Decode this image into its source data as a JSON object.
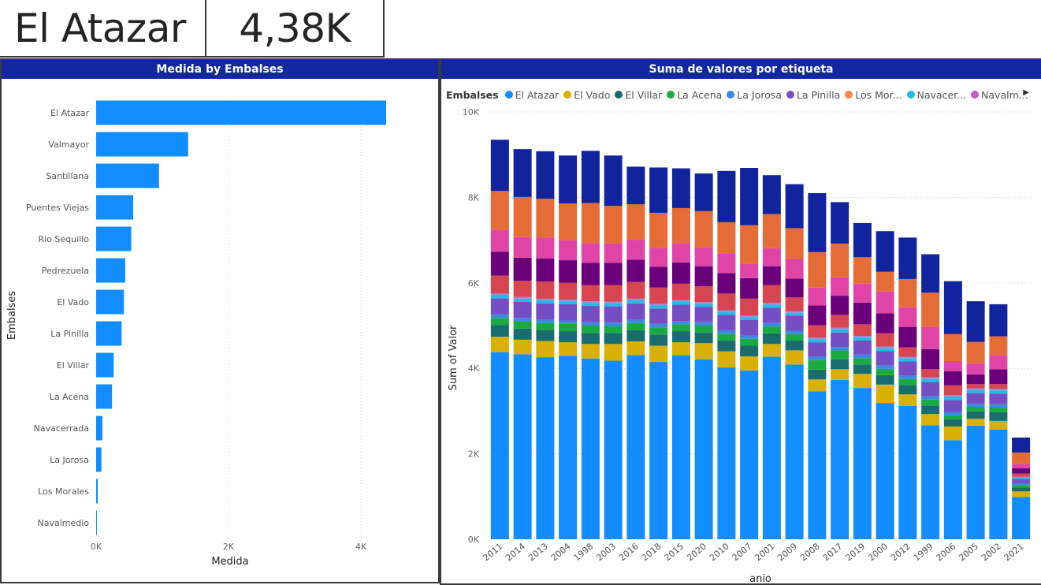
{
  "cards": {
    "name": "El Atazar",
    "value": "4,38K"
  },
  "chart_data": [
    {
      "type": "bar",
      "orientation": "horizontal",
      "title": "Medida by Embalses",
      "xlabel": "Medida",
      "ylabel": "Embalses",
      "xlim": [
        0,
        5000
      ],
      "ticks": [
        "0K",
        "2K",
        "4K"
      ],
      "tick_values": [
        0,
        2000,
        4000
      ],
      "color": "#118dff",
      "categories": [
        "El Atazar",
        "Valmayor",
        "Santillana",
        "Puentes Viejas",
        "Rio Sequillo",
        "Pedrezuela",
        "El Vado",
        "La Pinilla",
        "El Villar",
        "La Acena",
        "Navacerrada",
        "La Jorosa",
        "Los Morales",
        "Navalmedio"
      ],
      "values": [
        4380,
        1390,
        950,
        560,
        530,
        440,
        420,
        385,
        265,
        240,
        95,
        80,
        25,
        12
      ]
    },
    {
      "type": "bar",
      "stacked": true,
      "title": "Suma de valores por etiqueta",
      "xlabel": "anio",
      "ylabel": "Sum of Valor",
      "ylim": [
        0,
        10000
      ],
      "ticks": [
        "0K",
        "2K",
        "4K",
        "6K",
        "8K",
        "10K"
      ],
      "tick_values": [
        0,
        2000,
        4000,
        6000,
        8000,
        10000
      ],
      "legend_title": "Embalses",
      "legend_position": "top-left",
      "legend": [
        {
          "label": "El Atazar",
          "color": "#118dff"
        },
        {
          "label": "El Vado",
          "color": "#d8b006"
        },
        {
          "label": "El Villar",
          "color": "#1a6d6f"
        },
        {
          "label": "La Acena",
          "color": "#1aab40"
        },
        {
          "label": "La Jorosa",
          "color": "#3d88e6"
        },
        {
          "label": "La Pinilla",
          "color": "#744ec2"
        },
        {
          "label": "Los Mor...",
          "color": "#f7894a"
        },
        {
          "label": "Navacer...",
          "color": "#1ebde3"
        },
        {
          "label": "Navalm...",
          "color": "#c957c7"
        }
      ],
      "series_colors": [
        "#118dff",
        "#d8b006",
        "#1a6d6f",
        "#1aab40",
        "#3d88e6",
        "#744ec2",
        "#1ebde3",
        "#9c88dc",
        "#d64550",
        "#6b007b",
        "#e044a7",
        "#e66c37",
        "#12239e"
      ],
      "categories": [
        "2011",
        "2014",
        "2013",
        "2004",
        "1998",
        "2003",
        "2016",
        "2018",
        "2015",
        "2020",
        "2010",
        "2007",
        "2001",
        "2009",
        "2008",
        "2017",
        "2019",
        "2000",
        "2012",
        "1999",
        "2006",
        "2005",
        "2002",
        "2021"
      ],
      "segments": [
        [
          4380,
          360,
          270,
          170,
          80,
          380,
          70,
          40,
          420,
          560,
          510,
          910,
          1200
        ],
        [
          4330,
          340,
          260,
          170,
          80,
          380,
          70,
          40,
          380,
          540,
          480,
          940,
          1120
        ],
        [
          4260,
          380,
          260,
          160,
          80,
          380,
          70,
          40,
          400,
          540,
          490,
          910,
          1110
        ],
        [
          4290,
          320,
          260,
          170,
          80,
          380,
          70,
          40,
          390,
          530,
          470,
          860,
          1120
        ],
        [
          4230,
          340,
          260,
          170,
          80,
          380,
          70,
          40,
          380,
          520,
          460,
          940,
          1220
        ],
        [
          4180,
          390,
          260,
          160,
          80,
          380,
          70,
          40,
          390,
          520,
          450,
          880,
          1180
        ],
        [
          4310,
          320,
          260,
          170,
          80,
          380,
          70,
          40,
          390,
          520,
          470,
          830,
          880
        ],
        [
          4150,
          380,
          260,
          170,
          80,
          360,
          70,
          40,
          380,
          490,
          440,
          820,
          1060
        ],
        [
          4310,
          300,
          260,
          160,
          80,
          380,
          70,
          40,
          380,
          500,
          450,
          820,
          930
        ],
        [
          4210,
          380,
          250,
          160,
          80,
          360,
          70,
          40,
          370,
          470,
          450,
          840,
          880
        ],
        [
          4020,
          380,
          250,
          160,
          80,
          360,
          70,
          40,
          390,
          480,
          450,
          740,
          1200
        ],
        [
          3950,
          330,
          250,
          160,
          80,
          360,
          70,
          40,
          390,
          480,
          330,
          910,
          1340
        ],
        [
          4270,
          300,
          250,
          160,
          80,
          360,
          70,
          40,
          420,
          440,
          420,
          800,
          910
        ],
        [
          4090,
          330,
          230,
          150,
          80,
          350,
          70,
          40,
          320,
          440,
          460,
          720,
          1030
        ],
        [
          3460,
          280,
          230,
          220,
          80,
          340,
          70,
          40,
          290,
          460,
          420,
          830,
          1380
        ],
        [
          3730,
          250,
          230,
          210,
          80,
          340,
          70,
          40,
          300,
          450,
          430,
          790,
          970
        ],
        [
          3540,
          330,
          220,
          150,
          80,
          330,
          70,
          40,
          270,
          510,
          440,
          620,
          800
        ],
        [
          3190,
          430,
          220,
          150,
          80,
          330,
          70,
          40,
          310,
          470,
          510,
          460,
          950
        ],
        [
          3120,
          270,
          220,
          140,
          80,
          330,
          70,
          40,
          220,
          480,
          460,
          660,
          970
        ],
        [
          2670,
          260,
          200,
          140,
          80,
          330,
          70,
          40,
          190,
          470,
          520,
          800,
          900
        ],
        [
          2320,
          320,
          170,
          100,
          70,
          280,
          70,
          40,
          230,
          330,
          240,
          630,
          1240
        ],
        [
          2660,
          160,
          170,
          110,
          70,
          250,
          70,
          40,
          100,
          230,
          260,
          500,
          950
        ],
        [
          2570,
          200,
          200,
          120,
          70,
          250,
          70,
          40,
          110,
          350,
          330,
          440,
          750
        ],
        [
          990,
          130,
          90,
          60,
          40,
          100,
          30,
          20,
          80,
          120,
          100,
          270,
          350
        ]
      ]
    }
  ]
}
